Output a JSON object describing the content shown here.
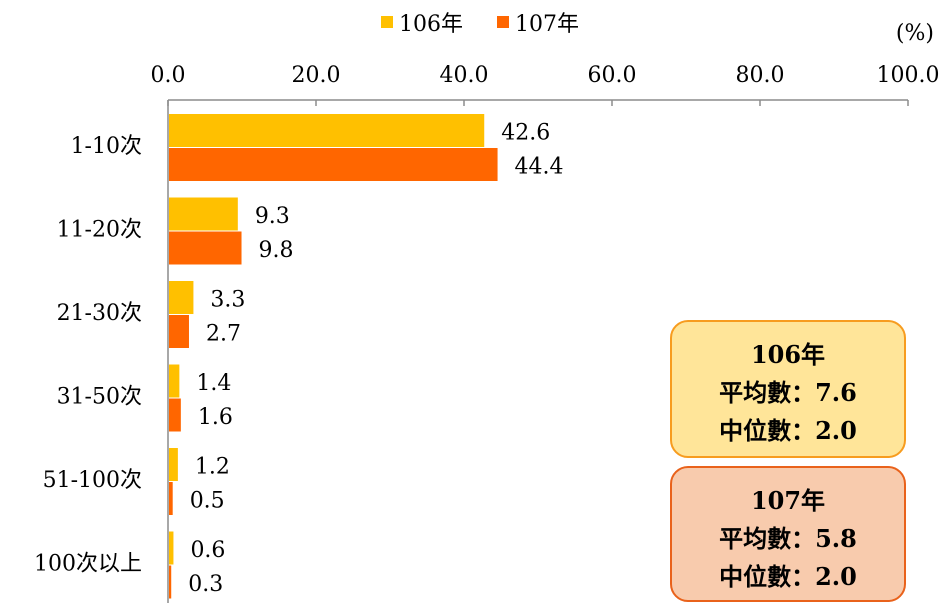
{
  "chart_data": {
    "type": "bar",
    "orientation": "horizontal",
    "unit_label": "(%)",
    "categories": [
      "1-10次",
      "11-20次",
      "21-30次",
      "31-50次",
      "51-100次",
      "100次以上"
    ],
    "series": [
      {
        "name": "106年",
        "color": "#ffc000",
        "values": [
          42.6,
          9.3,
          3.3,
          1.4,
          1.2,
          0.6
        ]
      },
      {
        "name": "107年",
        "color": "#ff6600",
        "values": [
          44.4,
          9.8,
          2.7,
          1.6,
          0.5,
          0.3
        ]
      }
    ],
    "xlim": [
      0,
      100
    ],
    "xticks": [
      "0.0",
      "20.0",
      "40.0",
      "60.0",
      "80.0",
      "100.0"
    ],
    "axis_position": "top",
    "legend_position": "top-center",
    "grid": false
  },
  "summary": {
    "box106": {
      "title": "106年",
      "mean": "平均數：7.6",
      "median": "中位數：2.0"
    },
    "box107": {
      "title": "107年",
      "mean": "平均數：5.8",
      "median": "中位數：2.0"
    }
  }
}
